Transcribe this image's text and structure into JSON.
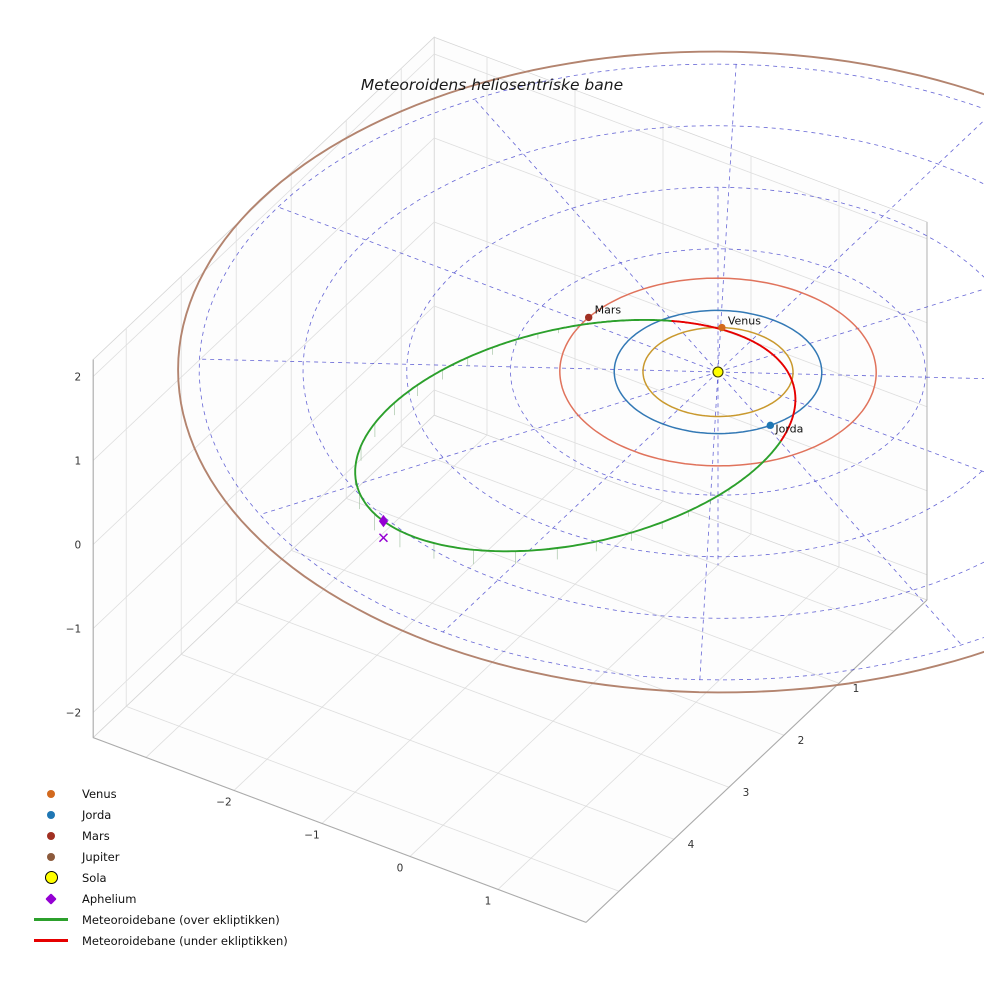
{
  "title": "Meteoroidens heliosentriske bane",
  "chart_data": {
    "type": "line",
    "subtype": "3d-heliocentric-orbit-plot",
    "title": "Meteoroidens heliosentriske bane",
    "axes": {
      "x_ticks": [
        {
          "v": -2,
          "label": "−2"
        },
        {
          "v": -1,
          "label": "−1"
        },
        {
          "v": 0,
          "label": "0"
        },
        {
          "v": 1,
          "label": "1"
        }
      ],
      "y_ticks": [
        {
          "v": 1,
          "label": "1"
        },
        {
          "v": 2,
          "label": "2"
        },
        {
          "v": 3,
          "label": "3"
        },
        {
          "v": 4,
          "label": "4"
        }
      ],
      "z_ticks": [
        {
          "v": 2,
          "label": "2"
        },
        {
          "v": 1,
          "label": "1"
        },
        {
          "v": 0,
          "label": "0"
        },
        {
          "v": -1,
          "label": "−1"
        },
        {
          "v": -2,
          "label": "−2"
        }
      ],
      "grid": true
    },
    "sun": {
      "name": "Sola",
      "position_au": [
        0,
        0,
        0
      ],
      "color": "#ffff00",
      "edge_color": "#3a3a00"
    },
    "planets": [
      {
        "name": "Venus",
        "orbit_radius_au": 0.723,
        "orbit_color": "#c9992e",
        "marker_color": "#d2691e",
        "position_au": [
          -0.351,
          -0.632
        ],
        "label_offset": [
          6,
          -3
        ],
        "show_label": true
      },
      {
        "name": "Jorda",
        "orbit_radius_au": 1.0,
        "orbit_color": "#3379b5",
        "marker_color": "#1f77b4",
        "position_au": [
          0.885,
          0.464
        ],
        "label_offset": [
          5,
          7
        ],
        "show_label": true
      },
      {
        "name": "Mars",
        "orbit_radius_au": 1.524,
        "orbit_color": "#e0735c",
        "marker_color": "#a13022",
        "position_au": [
          -1.522,
          -0.084
        ],
        "label_offset": [
          6,
          -4
        ],
        "show_label": true
      },
      {
        "name": "Jupiter",
        "orbit_radius_au": 5.203,
        "orbit_color": "#b3846f",
        "marker_color": "#8c5a3c",
        "position_au": null,
        "label_offset": [
          0,
          0
        ],
        "show_label": false
      }
    ],
    "ecliptic_grid": {
      "circle_radii_au": [
        1,
        2,
        3,
        4,
        5
      ],
      "spoke_count": 12,
      "max_radius_au": 5,
      "color": "#3434c8",
      "z_axis_line": true
    },
    "meteoroid_orbit": {
      "a_au": 2.42,
      "e": 0.744,
      "perihelion_au": 0.62,
      "aphelion_au": 4.22,
      "inclination_deg": 2.9,
      "e1": [
        0.307,
        -0.95,
        -0.047
      ],
      "e2": [
        0.951,
        0.308,
        -0.0096
      ],
      "over_color": "#2ca02c",
      "under_color": "#e60000",
      "aphelion_marker": {
        "label": "Aphelium",
        "color": "#9400d3"
      }
    }
  },
  "legend": {
    "items": [
      {
        "id": "venus",
        "type": "dot",
        "color": "#d2691e",
        "label": "Venus"
      },
      {
        "id": "jorda",
        "type": "dot",
        "color": "#1f77b4",
        "label": "Jorda"
      },
      {
        "id": "mars",
        "type": "dot",
        "color": "#a13022",
        "label": "Mars"
      },
      {
        "id": "jupiter",
        "type": "dot",
        "color": "#8c5a3c",
        "label": "Jupiter"
      },
      {
        "id": "sola",
        "type": "dot-large",
        "color": "#ffff00",
        "stroke": "#000000",
        "label": "Sola"
      },
      {
        "id": "aphelium",
        "type": "diamond",
        "color": "#9400d3",
        "label": "Aphelium"
      },
      {
        "id": "meteoroide-over",
        "type": "line",
        "color": "#2ca02c",
        "label": "Meteoroidebane (over ekliptikken)"
      },
      {
        "id": "meteoroide-under",
        "type": "line",
        "color": "#e60000",
        "label": "Meteoroidebane (under ekliptikken)"
      }
    ]
  }
}
